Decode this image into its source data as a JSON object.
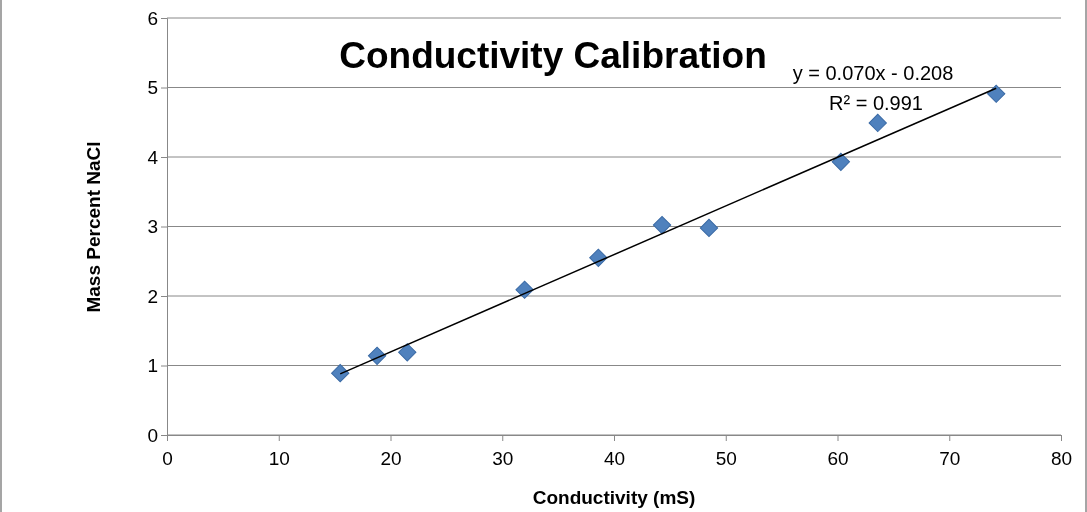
{
  "chart_data": {
    "type": "scatter",
    "title": "Conductivity Calibration",
    "xlabel": "Conductivity (mS)",
    "ylabel": "Mass Percent NaCl",
    "xlim": [
      0,
      80
    ],
    "xticks": [
      0,
      10,
      20,
      30,
      40,
      50,
      60,
      70,
      80
    ],
    "ylim": [
      0,
      6
    ],
    "yticks": [
      0,
      1,
      2,
      3,
      4,
      5,
      6
    ],
    "grid": "y",
    "marker": "diamond",
    "annotations": [
      "y = 0.070x - 0.208",
      "R² = 0.991"
    ],
    "series": [
      {
        "type": "scatter",
        "color": "#4f81bd",
        "x": [
          15.5,
          18.8,
          21.5,
          32.0,
          38.6,
          44.3,
          48.5,
          60.3,
          63.6,
          74.2
        ],
        "values": [
          0.89,
          1.14,
          1.19,
          2.09,
          2.55,
          3.02,
          2.98,
          3.93,
          4.49,
          4.91
        ]
      },
      {
        "type": "line",
        "color": "#000000",
        "line_style": "solid",
        "marker": "none",
        "x": [
          15.5,
          74.2
        ],
        "values": [
          0.88,
          4.99
        ]
      }
    ]
  }
}
